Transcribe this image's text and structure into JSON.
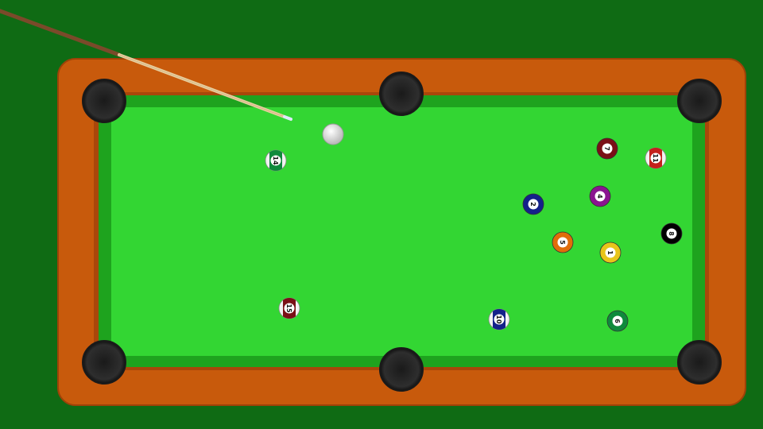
{
  "colors": {
    "background": "#0f6b14",
    "rail": "#c85a0c",
    "rail_dark": "#a9470a",
    "cushion": "#1ea31e",
    "felt": "#33d633",
    "pocket": "#2b2b2b",
    "cue_ball": "#dddddd"
  },
  "table": {
    "pockets": [
      {
        "id": "top-left"
      },
      {
        "id": "top-middle"
      },
      {
        "id": "top-right"
      },
      {
        "id": "bottom-left"
      },
      {
        "id": "bottom-middle"
      },
      {
        "id": "bottom-right"
      }
    ]
  },
  "cue_stick": {
    "icon": "cue-stick-icon"
  },
  "cue_ball": {
    "label": ""
  },
  "balls": [
    {
      "number": "14",
      "color": "#0f8a3c",
      "stripe": true
    },
    {
      "number": "7",
      "color": "#7a0f16",
      "stripe": false
    },
    {
      "number": "11",
      "color": "#c4211c",
      "stripe": true
    },
    {
      "number": "2",
      "color": "#14218a",
      "stripe": false
    },
    {
      "number": "4",
      "color": "#8a1490",
      "stripe": false
    },
    {
      "number": "8",
      "color": "#000000",
      "stripe": false
    },
    {
      "number": "5",
      "color": "#e06d0a",
      "stripe": false
    },
    {
      "number": "1",
      "color": "#e8c51a",
      "stripe": false
    },
    {
      "number": "15",
      "color": "#7a0f16",
      "stripe": true
    },
    {
      "number": "10",
      "color": "#14218a",
      "stripe": true
    },
    {
      "number": "6",
      "color": "#0f8a3c",
      "stripe": false
    }
  ]
}
